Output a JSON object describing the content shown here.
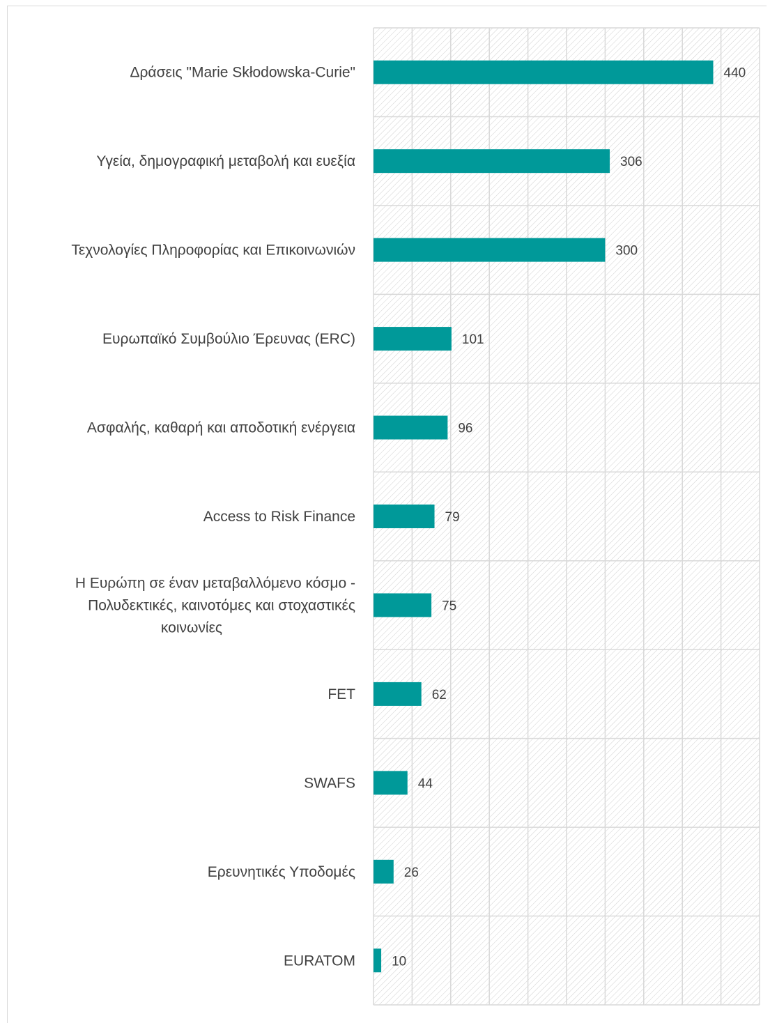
{
  "chart_data": {
    "type": "bar",
    "orientation": "horizontal",
    "categories": [
      [
        "Δράσεις \"Marie Skłodowska-Curie\""
      ],
      [
        "Υγεία, δημογραφική μεταβολή και ευεξία"
      ],
      [
        "Τεχνολογίες Πληροφορίας και Επικοινωνιών"
      ],
      [
        "Ευρωπαϊκό Συμβούλιο Έρευνας (ERC)"
      ],
      [
        "Ασφαλής, καθαρή και αποδοτική ενέργεια"
      ],
      [
        "Access to Risk Finance"
      ],
      [
        "Η Ευρώπη σε έναν μεταβαλλόμενο κόσμο -",
        "Πολυδεκτικές, καινοτόμες και στοχαστικές",
        "κοινωνίες"
      ],
      [
        "FET"
      ],
      [
        "SWAFS"
      ],
      [
        "Ερευνητικές Υποδομές"
      ],
      [
        "EURATOM"
      ]
    ],
    "values": [
      440,
      306,
      300,
      101,
      96,
      79,
      75,
      62,
      44,
      26,
      10
    ],
    "xlim": [
      0,
      500
    ],
    "x_gridline_step": 50,
    "grid": true,
    "background_pattern": "diagonal-hatch",
    "bar_color": "#009999",
    "grid_color": "#d9d9d9",
    "data_labels": true,
    "title": "",
    "xlabel": "",
    "ylabel": ""
  }
}
